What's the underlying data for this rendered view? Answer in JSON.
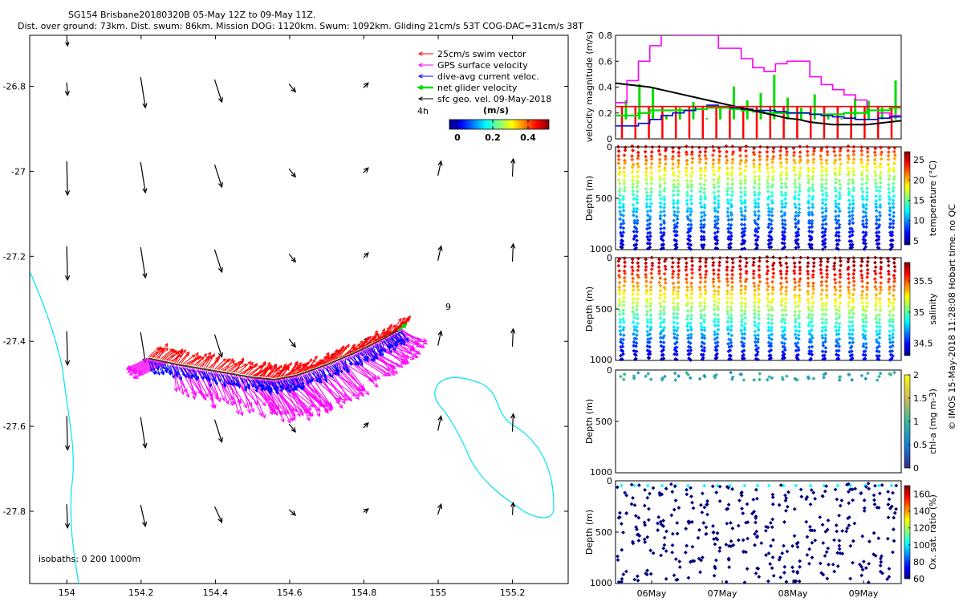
{
  "header": {
    "title_line1": "SG154 Brisbane20180320B 05-May 12Z to 09-May 11Z.",
    "title_line2": "Dist. over ground: 73km. Dist. swum: 86km. Mission DOG: 1120km. Swum: 1092km. Gliding 21cm/s 53T COG-DAC=31cm/s 38T"
  },
  "map": {
    "legend": [
      {
        "label": "25cm/s swim vector",
        "color": "#ff0000"
      },
      {
        "label": "GPS surface velocity",
        "color": "#ff00ff"
      },
      {
        "label": "dive-avg current veloc.",
        "color": "#0000ff"
      },
      {
        "label": "net glider velocity",
        "color": "#00e000"
      },
      {
        "label": "sfc geo. vel. 09-May-2018",
        "color": "#000000"
      }
    ],
    "time_label": "4h",
    "colorbar_title": "(m/s)",
    "colorbar_ticks": [
      "0",
      "0.2",
      "0.4"
    ],
    "isobath_label": "isobaths: 0   200  1000m",
    "marker_label": "9",
    "x_ticks": [
      "154",
      "154.2",
      "154.4",
      "154.6",
      "154.8",
      "155",
      "155.2"
    ],
    "y_ticks": [
      "-26.8",
      "-27",
      "-27.2",
      "-27.4",
      "-27.6",
      "-27.8"
    ]
  },
  "chart_data": [
    {
      "type": "line",
      "name": "glider track map",
      "xlim": [
        153.9,
        155.35
      ],
      "ylim": [
        -27.97,
        -26.68
      ],
      "track": {
        "x": [
          154.22,
          154.3,
          154.4,
          154.5,
          154.56,
          154.62,
          154.7,
          154.78,
          154.85,
          154.9
        ],
        "y": [
          -27.44,
          -27.455,
          -27.47,
          -27.485,
          -27.49,
          -27.48,
          -27.455,
          -27.425,
          -27.395,
          -27.37
        ]
      },
      "geostrophic_vectors": {
        "lons": [
          154.0,
          154.2,
          154.4,
          154.6,
          154.8,
          155.0,
          155.2
        ],
        "lats": [
          -26.8,
          -27.0,
          -27.2,
          -27.4,
          -27.6,
          -27.8
        ],
        "note": "small black arrows of surface geostrophic velocity"
      }
    },
    {
      "type": "line",
      "ylabel": "velocity magnitude (m/s)",
      "ylim": [
        0,
        0.8
      ],
      "y_ticks": [
        0,
        0.2,
        0.4,
        0.6,
        0.8
      ],
      "x_range_days": [
        "05-May 12Z",
        "09-May 11Z"
      ],
      "series": [
        {
          "name": "GPS surface velocity",
          "color": "#ff00ff",
          "values": [
            0.28,
            0.45,
            0.6,
            0.72,
            0.82,
            0.8,
            0.8,
            0.8,
            0.8,
            0.7,
            0.7,
            0.62,
            0.55,
            0.52,
            0.58,
            0.6,
            0.6,
            0.48,
            0.42,
            0.38,
            0.34,
            0.3,
            0.22,
            0.2,
            0.18,
            0.17
          ]
        },
        {
          "name": "net glider velocity",
          "color": "#00dd00",
          "values": [
            0.18,
            0.18,
            0.2,
            0.22,
            0.22,
            0.22,
            0.22,
            0.23,
            0.24,
            0.24,
            0.23,
            0.22,
            0.21,
            0.2,
            0.2,
            0.2,
            0.2,
            0.19,
            0.19,
            0.19,
            0.2,
            0.2,
            0.22,
            0.22,
            0.24,
            0.24
          ]
        },
        {
          "name": "dive-avg current veloc.",
          "color": "#0000cc",
          "values": [
            0.1,
            0.1,
            0.12,
            0.15,
            0.18,
            0.2,
            0.22,
            0.25,
            0.26,
            0.25,
            0.24,
            0.23,
            0.22,
            0.22,
            0.21,
            0.2,
            0.2,
            0.19,
            0.18,
            0.17,
            0.16,
            0.15,
            0.15,
            0.16,
            0.17,
            0.17
          ]
        },
        {
          "name": "sfc geo. vel.",
          "color": "#000000",
          "values": [
            0.43,
            0.42,
            0.41,
            0.4,
            0.38,
            0.36,
            0.34,
            0.32,
            0.3,
            0.28,
            0.26,
            0.24,
            0.22,
            0.2,
            0.18,
            0.16,
            0.15,
            0.13,
            0.12,
            0.11,
            0.11,
            0.11,
            0.11,
            0.12,
            0.13,
            0.14
          ]
        },
        {
          "name": "25cm/s swim vector",
          "color": "#ff0000",
          "values": [
            0.25,
            0.25,
            0.25,
            0.25,
            0.25,
            0.25,
            0.25,
            0.25,
            0.25,
            0.25,
            0.25,
            0.25,
            0.25,
            0.25,
            0.25,
            0.25,
            0.25,
            0.25,
            0.25,
            0.25,
            0.25,
            0.25,
            0.25,
            0.25,
            0.25,
            0.25
          ]
        }
      ]
    },
    {
      "type": "scatter",
      "ylabel": "Depth (m)",
      "ylim": [
        1000,
        0
      ],
      "cbar_label": "temperature (°C)",
      "cbar_ticks": [
        "5",
        "10",
        "15",
        "20",
        "25"
      ],
      "colormap": "jet",
      "n_dives": 21,
      "clim": [
        4,
        27
      ]
    },
    {
      "type": "scatter",
      "ylabel": "Depth (m)",
      "ylim": [
        1000,
        0
      ],
      "cbar_label": "salinity",
      "cbar_ticks": [
        "34.5",
        "35",
        "35.5"
      ],
      "colormap": "jet",
      "n_dives": 21,
      "clim": [
        34.3,
        35.8
      ]
    },
    {
      "type": "scatter",
      "ylabel": "Depth (m)",
      "ylim": [
        1000,
        0
      ],
      "cbar_label": "chl-a (mg m-3)",
      "cbar_ticks": [
        "0",
        "0.5",
        "1",
        "1.5",
        "2"
      ],
      "colormap": "parula",
      "clim": [
        0,
        2
      ]
    },
    {
      "type": "scatter",
      "ylabel": "Depth (m)",
      "ylim": [
        1000,
        0
      ],
      "cbar_label": "Ox. sat. ratio (%)",
      "cbar_ticks": [
        "60",
        "80",
        "100",
        "120",
        "140",
        "160"
      ],
      "colormap": "jet",
      "clim": [
        60,
        170
      ],
      "x_ticks": [
        "06May",
        "07May",
        "08May",
        "09May"
      ]
    }
  ],
  "panels": {
    "velocity": {
      "ylabel": "velocity magnitude (m/s)",
      "y_ticks": [
        "0",
        "0.2",
        "0.4",
        "0.6",
        "0.8"
      ]
    },
    "temperature": {
      "ylabel": "Depth (m)",
      "y_ticks": [
        "0",
        "500",
        "1000"
      ],
      "cbar_label": "temperature (°C)",
      "cbar_ticks": [
        "5",
        "10",
        "15",
        "20",
        "25"
      ]
    },
    "salinity": {
      "ylabel": "Depth (m)",
      "y_ticks": [
        "0",
        "500",
        "1000"
      ],
      "cbar_label": "salinity",
      "cbar_ticks": [
        "34.5",
        "35",
        "35.5"
      ]
    },
    "chla": {
      "ylabel": "Depth (m)",
      "y_ticks": [
        "0",
        "500",
        "1000"
      ],
      "cbar_label": "chl-a (mg m-3)",
      "cbar_ticks": [
        "0",
        "0.5",
        "1",
        "1.5",
        "2"
      ]
    },
    "oxygen": {
      "ylabel": "Depth (m)",
      "y_ticks": [
        "0",
        "500",
        "1000"
      ],
      "cbar_label": "Ox. sat. ratio (%)",
      "cbar_ticks": [
        "60",
        "80",
        "100",
        "120",
        "140",
        "160"
      ]
    },
    "x_ticks": [
      "06May",
      "07May",
      "08May",
      "09May"
    ]
  },
  "copyright": "© IMOS 15-May-2018 11:28:08 Hobart time. no QC"
}
